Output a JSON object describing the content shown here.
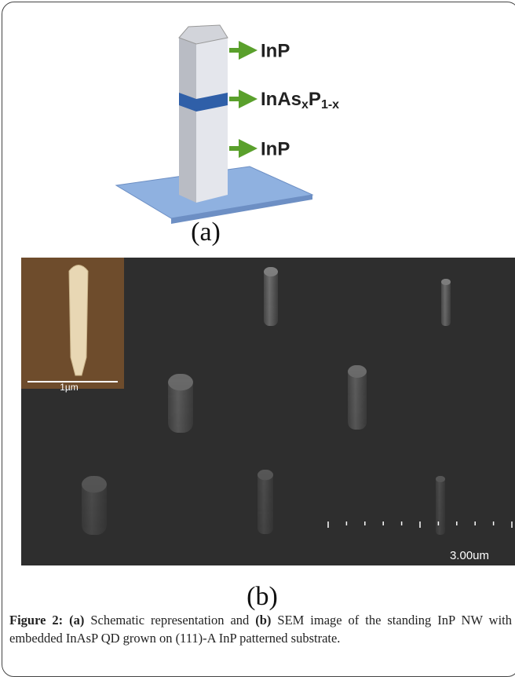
{
  "schematic": {
    "top_label": "InP",
    "middle_label": {
      "base": "InAs",
      "sub1": "x",
      "mid": "P",
      "sub2": "1-x"
    },
    "bottom_label": "InP",
    "panel_label": "(a)"
  },
  "sem": {
    "inset_scale": "1µm",
    "scale": "3.00um",
    "panel_label": "(b)"
  },
  "caption": {
    "figure": "Figure 2:",
    "a": "(a)",
    "text_a": "Schematic representation and",
    "b": "(b)",
    "text_b": "SEM image of the standing InP NW with embedded InAsP QD grown on (111)-A InP patterned substrate."
  }
}
